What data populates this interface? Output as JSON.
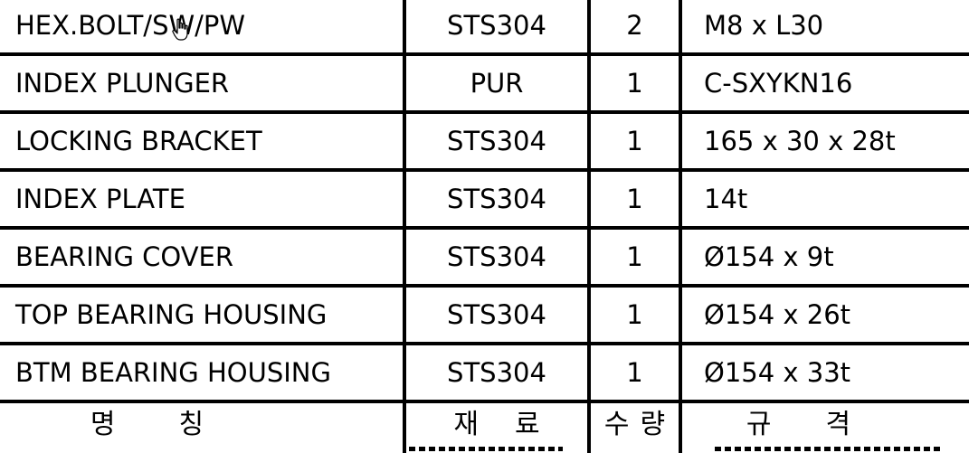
{
  "bom": {
    "rows": [
      {
        "name": "HEX.BOLT/SW/PW",
        "material": "STS304",
        "qty": "2",
        "spec": "M8 x L30"
      },
      {
        "name": "INDEX PLUNGER",
        "material": "PUR",
        "qty": "1",
        "spec": "C-SXYKN16"
      },
      {
        "name": "LOCKING BRACKET",
        "material": "STS304",
        "qty": "1",
        "spec": "165 x 30 x 28t"
      },
      {
        "name": "INDEX PLATE",
        "material": "STS304",
        "qty": "1",
        "spec": "14t"
      },
      {
        "name": "BEARING COVER",
        "material": "STS304",
        "qty": "1",
        "spec": "Ø154 x 9t"
      },
      {
        "name": "TOP BEARING HOUSING",
        "material": "STS304",
        "qty": "1",
        "spec": "Ø154 x 26t"
      },
      {
        "name": "BTM BEARING HOUSING",
        "material": "STS304",
        "qty": "1",
        "spec": "Ø154 x 33t"
      }
    ],
    "header": {
      "name": [
        "명",
        "칭"
      ],
      "material": [
        "재",
        "료"
      ],
      "qty": [
        "수",
        "량"
      ],
      "spec": [
        "규",
        "격"
      ]
    }
  }
}
